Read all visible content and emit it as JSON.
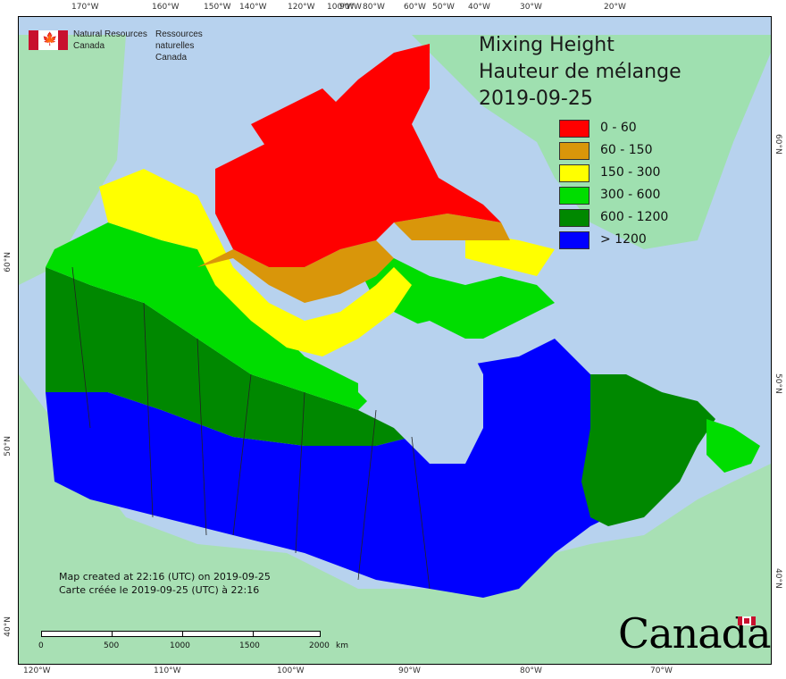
{
  "title": {
    "line1": "Mixing Height",
    "line2": "Hauteur de mélange",
    "date": "2019-09-25"
  },
  "org": {
    "en_line1": "Natural Resources",
    "en_line2": "Canada",
    "fr_line1": "Ressources naturelles",
    "fr_line2": "Canada",
    "flag_icon": "canada-flag-icon"
  },
  "legend": [
    {
      "label": "0 - 60",
      "color": "#ff0000"
    },
    {
      "label": "60 - 150",
      "color": "#d9960a"
    },
    {
      "label": "150 - 300",
      "color": "#ffff00"
    },
    {
      "label": "300 - 600",
      "color": "#00dd00"
    },
    {
      "label": "600 - 1200",
      "color": "#008800"
    },
    {
      "label": "> 1200",
      "color": "#0000ff"
    }
  ],
  "note": {
    "line1": "Map created at 22:16 (UTC) on 2019-09-25",
    "line2": "Carte créée le 2019-09-25 (UTC) à 22:16"
  },
  "scale_bar": {
    "labels": [
      "0",
      "500",
      "1000",
      "1500",
      "2000"
    ],
    "unit": "km"
  },
  "graticule": {
    "top": [
      "170°W",
      "160°W",
      "150°W",
      "140°W",
      "120°W",
      "100°W",
      "90°W",
      "80°W",
      "60°W",
      "50°W",
      "40°W",
      "30°W",
      "20°W"
    ],
    "bottom": [
      "120°W",
      "110°W",
      "100°W",
      "90°W",
      "80°W",
      "70°W"
    ],
    "left": [
      "60°N",
      "50°N",
      "40°N"
    ],
    "right": [
      "60°N",
      "50°N",
      "40°N"
    ]
  },
  "wordmark": "Canada",
  "colors": {
    "ocean": "#b7d2ee",
    "land_other": "#a8e0b4",
    "greenland": "#9fe0b0"
  }
}
